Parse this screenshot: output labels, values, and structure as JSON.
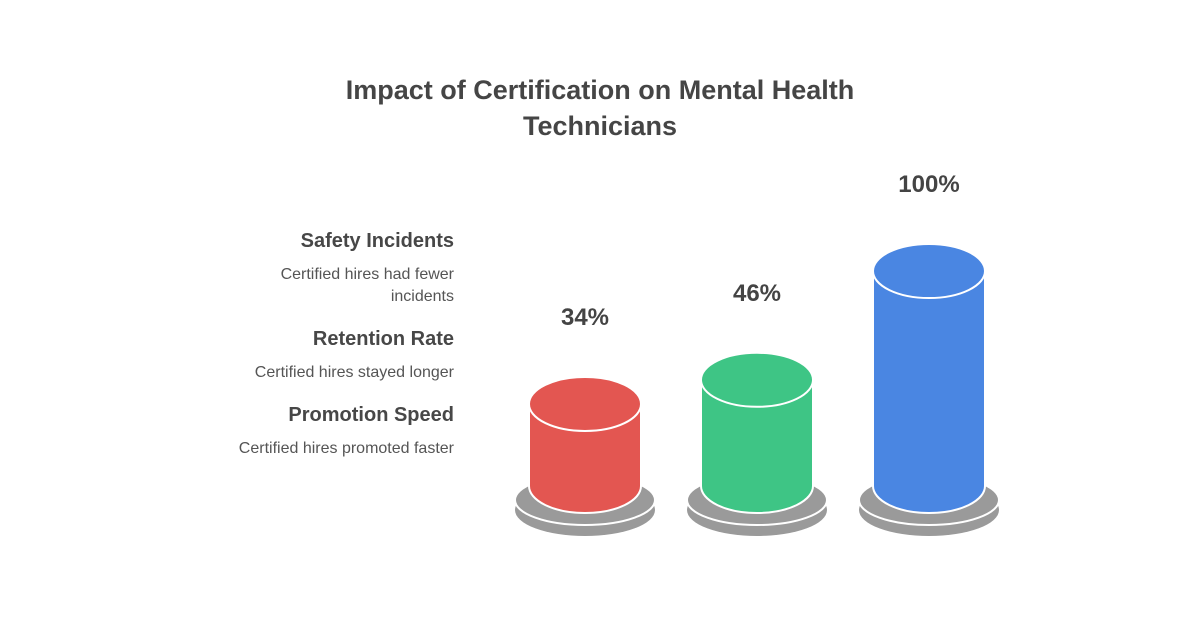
{
  "chart_data": {
    "type": "bar",
    "style": "3d-cylinder",
    "title": "Impact of Certification on Mental Health Technicians",
    "title_lines": [
      "Impact of Certification on Mental Health",
      "Technicians"
    ],
    "values": [
      34,
      46,
      100
    ],
    "value_labels": [
      "34%",
      "46%",
      "100%"
    ],
    "colors": [
      "#E35651",
      "#3EC585",
      "#4A86E2"
    ],
    "base_color": "#9A9A9A",
    "ylim": [
      0,
      100
    ],
    "grid": false,
    "legend_placement": "left",
    "legend_items": [
      {
        "label": "Safety Incidents",
        "description": "Certified hires had fewer incidents"
      },
      {
        "label": "Retention Rate",
        "description": "Certified hires stayed longer"
      },
      {
        "label": "Promotion Speed",
        "description": "Certified hires promoted faster"
      }
    ]
  }
}
